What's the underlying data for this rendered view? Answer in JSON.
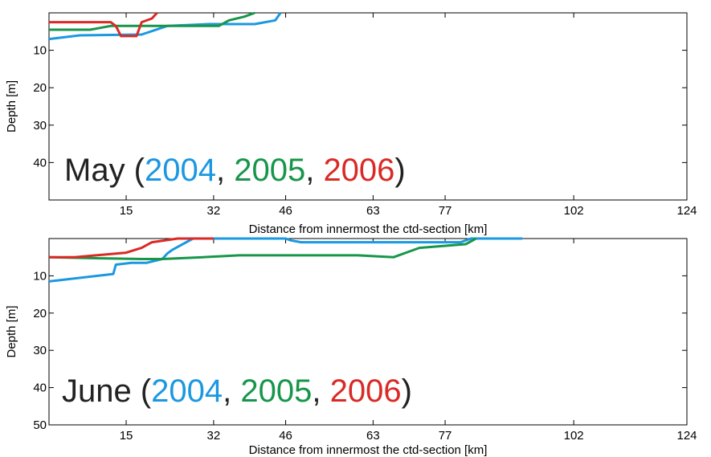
{
  "colors": {
    "2004": "#1b98e0",
    "2005": "#17964a",
    "2006": "#d92a25",
    "text": "#222222"
  },
  "chart_data": [
    {
      "type": "line",
      "ylabel": "Depth [m]",
      "xlabel": "Distance from innermost the ctd-section [km]",
      "xlim": [
        0,
        124
      ],
      "ylim": [
        50,
        0
      ],
      "y_inverted": true,
      "grid": false,
      "xticks": [
        15,
        32,
        46,
        63,
        77,
        102,
        124
      ],
      "yticks": [
        10,
        20,
        30,
        40
      ],
      "annotation": {
        "prefix": "May (",
        "parts": [
          {
            "text": "2004",
            "color_key": "2004"
          },
          {
            "text": ", ",
            "color_key": "text"
          },
          {
            "text": "2005",
            "color_key": "2005"
          },
          {
            "text": ", ",
            "color_key": "text"
          },
          {
            "text": "2006",
            "color_key": "2006"
          }
        ],
        "suffix": ")"
      },
      "series": [
        {
          "name": "2004",
          "color_key": "2004",
          "x": [
            0,
            6,
            18,
            23,
            31,
            40,
            44,
            45
          ],
          "y": [
            7,
            6,
            5.8,
            3.5,
            3,
            3,
            2,
            0
          ]
        },
        {
          "name": "2005",
          "color_key": "2005",
          "x": [
            0,
            8,
            12,
            33,
            35,
            38,
            40
          ],
          "y": [
            4.5,
            4.5,
            3.5,
            3.5,
            2,
            1,
            0
          ]
        },
        {
          "name": "2006",
          "color_key": "2006",
          "x": [
            0,
            12,
            13,
            14,
            17,
            18,
            20,
            21
          ],
          "y": [
            2.5,
            2.5,
            3.5,
            6.2,
            6.2,
            2.5,
            1.5,
            0
          ]
        }
      ]
    },
    {
      "type": "line",
      "ylabel": "Depth [m]",
      "xlabel": "Distance from innermost the ctd-section [km]",
      "xlim": [
        0,
        124
      ],
      "ylim": [
        50,
        0
      ],
      "y_inverted": true,
      "grid": false,
      "xticks": [
        15,
        32,
        46,
        63,
        77,
        102,
        124
      ],
      "yticks": [
        10,
        20,
        30,
        40,
        50
      ],
      "annotation": {
        "prefix": "June (",
        "parts": [
          {
            "text": "2004",
            "color_key": "2004"
          },
          {
            "text": ", ",
            "color_key": "text"
          },
          {
            "text": "2005",
            "color_key": "2005"
          },
          {
            "text": ", ",
            "color_key": "text"
          },
          {
            "text": "2006",
            "color_key": "2006"
          }
        ],
        "suffix": ")"
      },
      "series": [
        {
          "name": "2004",
          "color_key": "2004",
          "x": [
            0,
            12.5,
            13,
            16,
            19,
            22,
            23,
            24,
            28,
            45,
            46,
            47,
            49,
            68,
            80,
            82,
            92
          ],
          "y": [
            11.5,
            9.5,
            7,
            6.5,
            6.5,
            5.5,
            4,
            3,
            0,
            0,
            0,
            0.5,
            1,
            1,
            1,
            0,
            0
          ]
        },
        {
          "name": "2005",
          "color_key": "2005",
          "x": [
            0,
            10,
            18,
            22,
            30,
            37,
            48,
            60,
            67,
            72,
            81,
            83
          ],
          "y": [
            5,
            5.3,
            5.5,
            5.5,
            5,
            4.5,
            4.5,
            4.5,
            5,
            2.5,
            1.5,
            0
          ]
        },
        {
          "name": "2006",
          "color_key": "2006",
          "x": [
            0,
            5,
            15,
            18,
            20,
            25,
            32
          ],
          "y": [
            5,
            5,
            3.8,
            2.5,
            1,
            0,
            0
          ]
        }
      ]
    }
  ]
}
